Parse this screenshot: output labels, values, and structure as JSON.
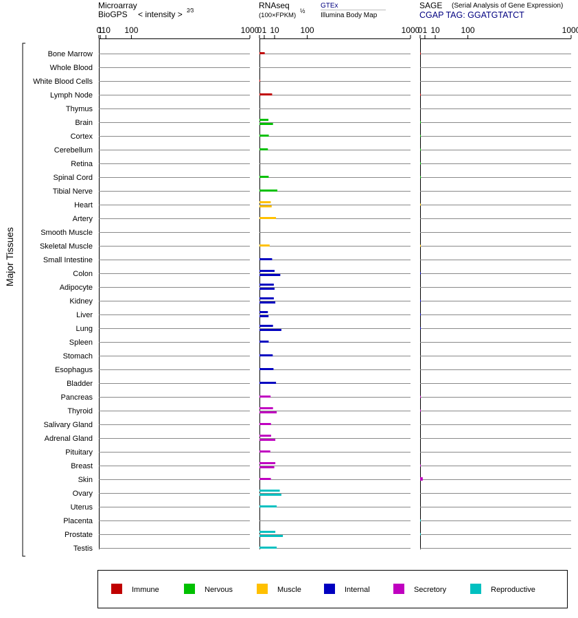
{
  "y_group_label": "Major Tissues",
  "panels": [
    {
      "title_line1": "Microarray",
      "title_line2": "BioGPS",
      "scale_label": "< intensity >",
      "scale_exponent": "2⁄3",
      "ticks": [
        "0",
        "1",
        "10",
        "100",
        "1000"
      ]
    },
    {
      "title_line1": "RNAseq",
      "title_line2": "(100×FPKM)",
      "scale_exponent": "½",
      "source_gtex": "GTEx",
      "source_illumina": "Illumina Body Map",
      "ticks": [
        "0",
        "1",
        "10",
        "100",
        "1000"
      ]
    },
    {
      "title_line1": "SAGE",
      "title_note": "(Serial Analysis of Gene Expression)",
      "tag_label": "CGAP TAG: GGATGTATCT",
      "ticks": [
        "0",
        "1",
        "10",
        "100",
        "1000"
      ]
    }
  ],
  "legend": [
    {
      "label": "Immune",
      "color": "#c00000"
    },
    {
      "label": "Nervous",
      "color": "#00c000"
    },
    {
      "label": "Muscle",
      "color": "#ffc000"
    },
    {
      "label": "Internal",
      "color": "#0000c0"
    },
    {
      "label": "Secretory",
      "color": "#c000c0"
    },
    {
      "label": "Reproductive",
      "color": "#00c0c0"
    }
  ],
  "chart_data": {
    "type": "bar",
    "orientation": "horizontal",
    "x_scale": "power (exponent 2/3 for microarray, 1/2 for RNAseq)",
    "xlim": [
      0,
      1000
    ],
    "categories": [
      "Bone Marrow",
      "Whole Blood",
      "White Blood Cells",
      "Lymph Node",
      "Thymus",
      "Brain",
      "Cortex",
      "Cerebellum",
      "Retina",
      "Spinal Cord",
      "Tibial Nerve",
      "Heart",
      "Artery",
      "Smooth Muscle",
      "Skeletal Muscle",
      "Small Intestine",
      "Colon",
      "Adipocyte",
      "Kidney",
      "Liver",
      "Lung",
      "Spleen",
      "Stomach",
      "Esophagus",
      "Bladder",
      "Pancreas",
      "Thyroid",
      "Salivary Gland",
      "Adrenal Gland",
      "Pituitary",
      "Breast",
      "Skin",
      "Ovary",
      "Uterus",
      "Placenta",
      "Prostate",
      "Testis"
    ],
    "category_groups": [
      "Immune",
      "Immune",
      "Immune",
      "Immune",
      "Immune",
      "Nervous",
      "Nervous",
      "Nervous",
      "Nervous",
      "Nervous",
      "Nervous",
      "Muscle",
      "Muscle",
      "Muscle",
      "Muscle",
      "Internal",
      "Internal",
      "Internal",
      "Internal",
      "Internal",
      "Internal",
      "Internal",
      "Internal",
      "Internal",
      "Internal",
      "Secretory",
      "Secretory",
      "Secretory",
      "Secretory",
      "Secretory",
      "Secretory",
      "Secretory",
      "Reproductive",
      "Reproductive",
      "Reproductive",
      "Reproductive",
      "Reproductive"
    ],
    "series": [
      {
        "name": "Microarray BioGPS",
        "values": [
          0,
          0,
          0,
          0,
          0,
          0,
          0,
          0,
          0,
          0,
          0,
          0,
          0,
          0,
          0,
          0,
          0,
          0,
          0,
          0,
          0,
          0,
          0,
          0,
          0,
          0,
          0,
          0,
          0,
          0,
          0,
          0,
          0,
          0,
          0,
          0,
          0
        ]
      },
      {
        "name": "GTEx",
        "values": [
          null,
          null,
          0,
          null,
          null,
          3.5,
          null,
          null,
          null,
          null,
          null,
          5.6,
          null,
          null,
          null,
          null,
          10,
          9,
          9,
          3.1,
          8,
          null,
          null,
          null,
          null,
          null,
          8,
          null,
          5.9,
          null,
          11,
          null,
          18,
          null,
          null,
          11,
          null
        ]
      },
      {
        "name": "Illumina Body Map",
        "values": [
          1.2,
          null,
          null,
          7,
          null,
          8,
          3.8,
          3.1,
          null,
          3.7,
          14,
          6.5,
          12,
          null,
          4.5,
          7,
          19,
          10,
          11,
          3.6,
          21,
          3.7,
          7.7,
          8.6,
          12,
          5.4,
          13,
          5.8,
          11,
          5.1,
          9.6,
          5.7,
          21,
          13,
          null,
          24,
          13
        ]
      },
      {
        "name": "SAGE",
        "values": [
          0.02,
          null,
          null,
          0.02,
          null,
          0.02,
          0.02,
          0.02,
          0.02,
          0.02,
          null,
          0.01,
          null,
          null,
          0.01,
          null,
          0.02,
          null,
          0.02,
          0.02,
          0.02,
          null,
          null,
          null,
          null,
          0.02,
          0.02,
          null,
          null,
          null,
          0.02,
          0.3,
          null,
          null,
          0.02,
          0.02,
          null
        ]
      }
    ]
  }
}
